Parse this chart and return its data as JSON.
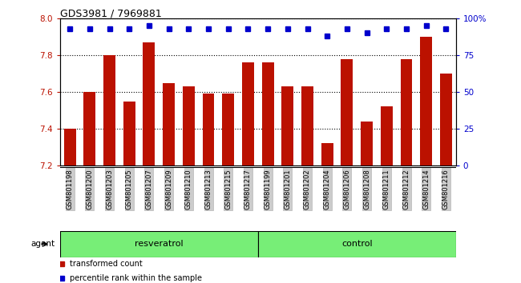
{
  "title": "GDS3981 / 7969881",
  "categories": [
    "GSM801198",
    "GSM801200",
    "GSM801203",
    "GSM801205",
    "GSM801207",
    "GSM801209",
    "GSM801210",
    "GSM801213",
    "GSM801215",
    "GSM801217",
    "GSM801199",
    "GSM801201",
    "GSM801202",
    "GSM801204",
    "GSM801206",
    "GSM801208",
    "GSM801211",
    "GSM801212",
    "GSM801214",
    "GSM801216"
  ],
  "bar_values": [
    7.4,
    7.6,
    7.8,
    7.55,
    7.87,
    7.65,
    7.63,
    7.59,
    7.59,
    7.76,
    7.76,
    7.63,
    7.63,
    7.32,
    7.78,
    7.44,
    7.52,
    7.78,
    7.9,
    7.7
  ],
  "percentile_values": [
    93,
    93,
    93,
    93,
    95,
    93,
    93,
    93,
    93,
    93,
    93,
    93,
    93,
    88,
    93,
    90,
    93,
    93,
    95,
    93
  ],
  "bar_color": "#bb1100",
  "percentile_color": "#0000cc",
  "ylim_left": [
    7.2,
    8.0
  ],
  "ylim_right": [
    0,
    100
  ],
  "yticks_left": [
    7.2,
    7.4,
    7.6,
    7.8,
    8.0
  ],
  "yticks_right": [
    0,
    25,
    50,
    75,
    100
  ],
  "ylabel_right_ticks": [
    "0",
    "25",
    "50",
    "75",
    "100%"
  ],
  "resveratrol_samples": 10,
  "control_samples": 10,
  "resveratrol_label": "resveratrol",
  "control_label": "control",
  "agent_label": "agent",
  "legend_bar": "transformed count",
  "legend_pct": "percentile rank within the sample",
  "group_bar_color": "#77ee77",
  "tick_label_bg": "#cccccc",
  "bar_width": 0.6
}
